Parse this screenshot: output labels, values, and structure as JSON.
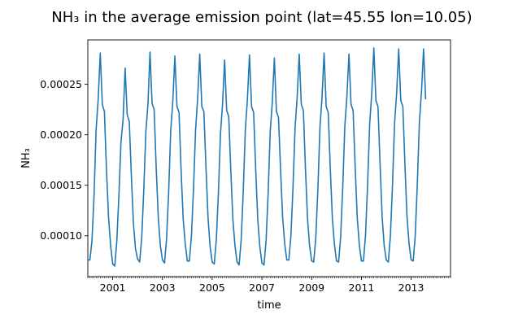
{
  "chart_data": {
    "type": "line",
    "title": "NH₃ in the average emission point (lat=45.55 lon=10.05)",
    "xlabel": "time",
    "ylabel": "NH₃",
    "xlim": [
      "2000-01",
      "2014-08"
    ],
    "ylim": [
      5.95e-05,
      0.000294
    ],
    "x_ticks": [
      {
        "date": "2001-01",
        "label": "2001"
      },
      {
        "date": "2003-01",
        "label": "2003"
      },
      {
        "date": "2005-01",
        "label": "2005"
      },
      {
        "date": "2007-01",
        "label": "2007"
      },
      {
        "date": "2009-01",
        "label": "2009"
      },
      {
        "date": "2011-01",
        "label": "2011"
      },
      {
        "date": "2013-01",
        "label": "2013"
      }
    ],
    "y_ticks": [
      {
        "value": 0.0001,
        "label": "0.00010"
      },
      {
        "value": 0.00015,
        "label": "0.00015"
      },
      {
        "value": 0.0002,
        "label": "0.00020"
      },
      {
        "value": 0.00025,
        "label": "0.00025"
      }
    ],
    "grid": false,
    "series": [
      {
        "color": "#1f77b4",
        "points": [
          [
            "2000-01",
            7.6e-05
          ],
          [
            "2000-02",
            7.6e-05
          ],
          [
            "2000-03",
            9.5e-05
          ],
          [
            "2000-04",
            0.00014
          ],
          [
            "2000-05",
            0.000205
          ],
          [
            "2000-06",
            0.000235
          ],
          [
            "2000-07",
            0.000281
          ],
          [
            "2000-08",
            0.00023
          ],
          [
            "2000-09",
            0.000223
          ],
          [
            "2000-10",
            0.000165
          ],
          [
            "2000-11",
            0.000118
          ],
          [
            "2000-12",
            9e-05
          ],
          [
            "2001-01",
            7.2e-05
          ],
          [
            "2001-02",
            7e-05
          ],
          [
            "2001-03",
            9.5e-05
          ],
          [
            "2001-04",
            0.00014
          ],
          [
            "2001-05",
            0.000193
          ],
          [
            "2001-06",
            0.000215
          ],
          [
            "2001-07",
            0.000266
          ],
          [
            "2001-08",
            0.00022
          ],
          [
            "2001-09",
            0.000213
          ],
          [
            "2001-10",
            0.00016
          ],
          [
            "2001-11",
            0.000112
          ],
          [
            "2001-12",
            8.7e-05
          ],
          [
            "2002-01",
            7.7e-05
          ],
          [
            "2002-02",
            7.4e-05
          ],
          [
            "2002-03",
            9.8e-05
          ],
          [
            "2002-04",
            0.000145
          ],
          [
            "2002-05",
            0.000203
          ],
          [
            "2002-06",
            0.00023
          ],
          [
            "2002-07",
            0.000282
          ],
          [
            "2002-08",
            0.000231
          ],
          [
            "2002-09",
            0.000225
          ],
          [
            "2002-10",
            0.000167
          ],
          [
            "2002-11",
            0.000118
          ],
          [
            "2002-12",
            9e-05
          ],
          [
            "2003-01",
            7.6e-05
          ],
          [
            "2003-02",
            7.3e-05
          ],
          [
            "2003-03",
            9.7e-05
          ],
          [
            "2003-04",
            0.000143
          ],
          [
            "2003-05",
            0.000204
          ],
          [
            "2003-06",
            0.000233
          ],
          [
            "2003-07",
            0.000278
          ],
          [
            "2003-08",
            0.000228
          ],
          [
            "2003-09",
            0.000222
          ],
          [
            "2003-10",
            0.000165
          ],
          [
            "2003-11",
            0.000117
          ],
          [
            "2003-12",
            9.2e-05
          ],
          [
            "2004-01",
            7.5e-05
          ],
          [
            "2004-02",
            7.5e-05
          ],
          [
            "2004-03",
            0.0001
          ],
          [
            "2004-04",
            0.000147
          ],
          [
            "2004-05",
            0.000205
          ],
          [
            "2004-06",
            0.000236
          ],
          [
            "2004-07",
            0.00028
          ],
          [
            "2004-08",
            0.000228
          ],
          [
            "2004-09",
            0.000223
          ],
          [
            "2004-10",
            0.000168
          ],
          [
            "2004-11",
            0.000118
          ],
          [
            "2004-12",
            8.9e-05
          ],
          [
            "2005-01",
            7.4e-05
          ],
          [
            "2005-02",
            7.2e-05
          ],
          [
            "2005-03",
            9.6e-05
          ],
          [
            "2005-04",
            0.000142
          ],
          [
            "2005-05",
            0.000201
          ],
          [
            "2005-06",
            0.00023
          ],
          [
            "2005-07",
            0.000274
          ],
          [
            "2005-08",
            0.000224
          ],
          [
            "2005-09",
            0.000218
          ],
          [
            "2005-10",
            0.000164
          ],
          [
            "2005-11",
            0.000116
          ],
          [
            "2005-12",
            9e-05
          ],
          [
            "2006-01",
            7.4e-05
          ],
          [
            "2006-02",
            7.1e-05
          ],
          [
            "2006-03",
            9.6e-05
          ],
          [
            "2006-04",
            0.000144
          ],
          [
            "2006-05",
            0.000205
          ],
          [
            "2006-06",
            0.000235
          ],
          [
            "2006-07",
            0.000279
          ],
          [
            "2006-08",
            0.000228
          ],
          [
            "2006-09",
            0.000222
          ],
          [
            "2006-10",
            0.000166
          ],
          [
            "2006-11",
            0.000116
          ],
          [
            "2006-12",
            8.9e-05
          ],
          [
            "2007-01",
            7.3e-05
          ],
          [
            "2007-02",
            7.1e-05
          ],
          [
            "2007-03",
            9.5e-05
          ],
          [
            "2007-04",
            0.000142
          ],
          [
            "2007-05",
            0.000203
          ],
          [
            "2007-06",
            0.000232
          ],
          [
            "2007-07",
            0.000276
          ],
          [
            "2007-08",
            0.000223
          ],
          [
            "2007-09",
            0.000217
          ],
          [
            "2007-10",
            0.000165
          ],
          [
            "2007-11",
            0.000118
          ],
          [
            "2007-12",
            9.2e-05
          ],
          [
            "2008-01",
            7.6e-05
          ],
          [
            "2008-02",
            7.6e-05
          ],
          [
            "2008-03",
            0.0001
          ],
          [
            "2008-04",
            0.000148
          ],
          [
            "2008-05",
            0.000207
          ],
          [
            "2008-06",
            0.000237
          ],
          [
            "2008-07",
            0.00028
          ],
          [
            "2008-08",
            0.00023
          ],
          [
            "2008-09",
            0.000224
          ],
          [
            "2008-10",
            0.000167
          ],
          [
            "2008-11",
            0.000117
          ],
          [
            "2008-12",
            9e-05
          ],
          [
            "2009-01",
            7.5e-05
          ],
          [
            "2009-02",
            7.4e-05
          ],
          [
            "2009-03",
            9.8e-05
          ],
          [
            "2009-04",
            0.000146
          ],
          [
            "2009-05",
            0.000207
          ],
          [
            "2009-06",
            0.000237
          ],
          [
            "2009-07",
            0.000281
          ],
          [
            "2009-08",
            0.000228
          ],
          [
            "2009-09",
            0.000222
          ],
          [
            "2009-10",
            0.000166
          ],
          [
            "2009-11",
            0.000117
          ],
          [
            "2009-12",
            9.1e-05
          ],
          [
            "2010-01",
            7.5e-05
          ],
          [
            "2010-02",
            7.4e-05
          ],
          [
            "2010-03",
            9.9e-05
          ],
          [
            "2010-04",
            0.000148
          ],
          [
            "2010-05",
            0.000208
          ],
          [
            "2010-06",
            0.000238
          ],
          [
            "2010-07",
            0.00028
          ],
          [
            "2010-08",
            0.00023
          ],
          [
            "2010-09",
            0.000224
          ],
          [
            "2010-10",
            0.000168
          ],
          [
            "2010-11",
            0.000118
          ],
          [
            "2010-12",
            9.1e-05
          ],
          [
            "2011-01",
            7.5e-05
          ],
          [
            "2011-02",
            7.5e-05
          ],
          [
            "2011-03",
            0.000101
          ],
          [
            "2011-04",
            0.000151
          ],
          [
            "2011-05",
            0.000211
          ],
          [
            "2011-06",
            0.000241
          ],
          [
            "2011-07",
            0.000286
          ],
          [
            "2011-08",
            0.000234
          ],
          [
            "2011-09",
            0.000228
          ],
          [
            "2011-10",
            0.000171
          ],
          [
            "2011-11",
            0.000119
          ],
          [
            "2011-12",
            9e-05
          ],
          [
            "2012-01",
            7.6e-05
          ],
          [
            "2012-02",
            7.4e-05
          ],
          [
            "2012-03",
            0.0001
          ],
          [
            "2012-04",
            0.00015
          ],
          [
            "2012-05",
            0.000211
          ],
          [
            "2012-06",
            0.000241
          ],
          [
            "2012-07",
            0.000285
          ],
          [
            "2012-08",
            0.000234
          ],
          [
            "2012-09",
            0.000228
          ],
          [
            "2012-10",
            0.000171
          ],
          [
            "2012-11",
            0.000119
          ],
          [
            "2012-12",
            9.2e-05
          ],
          [
            "2013-01",
            7.6e-05
          ],
          [
            "2013-02",
            7.5e-05
          ],
          [
            "2013-03",
            0.000101
          ],
          [
            "2013-04",
            0.000152
          ],
          [
            "2013-05",
            0.000213
          ],
          [
            "2013-06",
            0.000243
          ],
          [
            "2013-07",
            0.000285
          ],
          [
            "2013-08",
            0.000235
          ]
        ]
      }
    ]
  }
}
